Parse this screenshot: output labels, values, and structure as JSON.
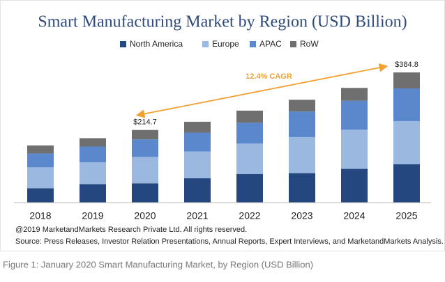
{
  "chart_data": {
    "type": "stacked_bar",
    "title": "Smart Manufacturing Market by Region (USD Billion)",
    "categories": [
      "2018",
      "2019",
      "2020",
      "2021",
      "2022",
      "2023",
      "2024",
      "2025"
    ],
    "series": [
      {
        "name": "North America",
        "color": "#24477f",
        "values": [
          42.6,
          54.7,
          57.1,
          71.9,
          84.4,
          87.1,
          99.7,
          113.2
        ]
      },
      {
        "name": "Europe",
        "color": "#9bb8e0",
        "values": [
          61.6,
          64.6,
          77.9,
          79.1,
          90.0,
          106.5,
          115.7,
          127.6
        ]
      },
      {
        "name": "APAC",
        "color": "#5b88cc",
        "values": [
          41.1,
          46.4,
          51.9,
          55.7,
          61.9,
          75.5,
          85.7,
          96.7
        ]
      },
      {
        "name": "RoW",
        "color": "#6f6f6f",
        "values": [
          23.7,
          24.8,
          27.8,
          32.3,
          35.6,
          34.9,
          37.9,
          47.3
        ]
      }
    ],
    "total_labels": [
      {
        "category": "2020",
        "value": 214.7,
        "label": "$214.7"
      },
      {
        "category": "2025",
        "value": 384.8,
        "label": "$384.8"
      }
    ],
    "annotation": "12.4% CAGR",
    "annotation_color": "#f0a030",
    "notes": [
      "@2019 MarketandMarkets Research Private Ltd. All rights reserved.",
      "Source: Press Releases, Investor Relation Presentations, Annual Reports, Expert Interviews, and MarketandMarkets Analysis."
    ]
  },
  "caption": "Figure 1: January 2020 Smart Manufacturing Market, by Region (USD Billion)"
}
